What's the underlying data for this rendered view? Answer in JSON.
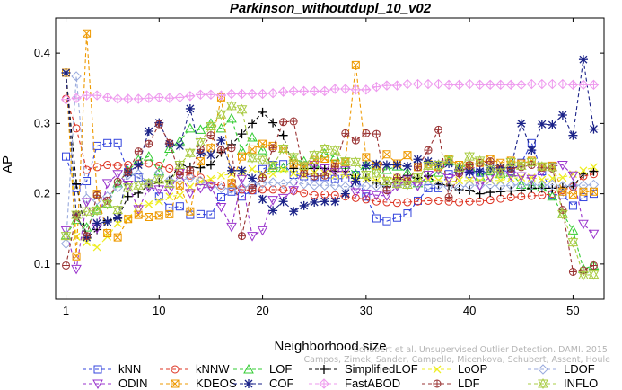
{
  "chart_data": {
    "type": "line",
    "title": "Parkinson_withoutdupl_10_v02",
    "xlabel": "Neighborhood size",
    "ylabel": "AP",
    "xlim": [
      0,
      53
    ],
    "ylim": [
      0.05,
      0.45
    ],
    "x_ticks": [
      1,
      10,
      20,
      30,
      40,
      50
    ],
    "y_ticks": [
      0.1,
      0.2,
      0.3,
      0.4
    ],
    "grid": false,
    "legend_position": "bottom",
    "x": [
      1,
      2,
      3,
      4,
      5,
      6,
      7,
      8,
      9,
      10,
      11,
      12,
      13,
      14,
      15,
      16,
      17,
      18,
      19,
      20,
      21,
      22,
      23,
      24,
      25,
      26,
      27,
      28,
      29,
      30,
      31,
      32,
      33,
      34,
      35,
      36,
      37,
      38,
      39,
      40,
      41,
      42,
      43,
      44,
      45,
      46,
      47,
      48,
      49,
      50,
      51,
      52
    ],
    "series": [
      {
        "name": "kNN",
        "color": "#3344dd",
        "marker": "square",
        "values": [
          0.253,
          0.208,
          0.218,
          0.268,
          0.272,
          0.272,
          0.231,
          0.223,
          0.214,
          0.196,
          0.18,
          0.182,
          0.17,
          0.171,
          0.17,
          0.195,
          0.203,
          0.196,
          0.205,
          0.235,
          0.241,
          0.242,
          0.227,
          0.225,
          0.224,
          0.224,
          0.221,
          0.222,
          0.227,
          0.196,
          0.165,
          0.161,
          0.166,
          0.172,
          0.19,
          0.208,
          0.208,
          0.228,
          0.233,
          0.228,
          0.23,
          0.232,
          0.233,
          0.232,
          0.244,
          0.272,
          0.232,
          0.199,
          0.198,
          0.183,
          0.195,
          0.2
        ]
      },
      {
        "name": "kNNW",
        "color": "#dd3322",
        "marker": "circle",
        "values": [
          0.335,
          0.293,
          0.234,
          0.238,
          0.241,
          0.24,
          0.241,
          0.243,
          0.243,
          0.24,
          0.236,
          0.231,
          0.226,
          0.223,
          0.214,
          0.212,
          0.21,
          0.206,
          0.205,
          0.206,
          0.206,
          0.206,
          0.204,
          0.201,
          0.198,
          0.199,
          0.198,
          0.196,
          0.194,
          0.192,
          0.189,
          0.188,
          0.187,
          0.188,
          0.189,
          0.19,
          0.19,
          0.189,
          0.188,
          0.189,
          0.189,
          0.191,
          0.193,
          0.195,
          0.196,
          0.197,
          0.198,
          0.2,
          0.205,
          0.21,
          0.225,
          0.228
        ]
      },
      {
        "name": "LOF",
        "color": "#33cc33",
        "marker": "triangle",
        "values": [
          0.141,
          0.163,
          0.152,
          0.178,
          0.186,
          0.215,
          0.232,
          0.248,
          0.253,
          0.232,
          0.264,
          0.275,
          0.293,
          0.291,
          0.3,
          0.293,
          0.307,
          0.261,
          0.28,
          0.262,
          0.237,
          0.237,
          0.248,
          0.246,
          0.243,
          0.257,
          0.252,
          0.241,
          0.228,
          0.241,
          0.235,
          0.234,
          0.239,
          0.23,
          0.215,
          0.223,
          0.23,
          0.246,
          0.238,
          0.24,
          0.225,
          0.232,
          0.228,
          0.23,
          0.213,
          0.212,
          0.209,
          0.196,
          0.172,
          0.148,
          0.093,
          0.098
        ]
      },
      {
        "name": "SimplifiedLOF",
        "color": "#000000",
        "marker": "plus",
        "values": [
          0.372,
          0.214,
          0.137,
          0.149,
          0.162,
          0.165,
          0.196,
          0.201,
          0.212,
          0.216,
          0.219,
          0.242,
          0.238,
          0.237,
          0.241,
          0.259,
          0.27,
          0.285,
          0.3,
          0.316,
          0.301,
          0.283,
          0.236,
          0.236,
          0.236,
          0.236,
          0.232,
          0.232,
          0.222,
          0.222,
          0.215,
          0.21,
          0.221,
          0.226,
          0.222,
          0.225,
          0.214,
          0.212,
          0.206,
          0.205,
          0.2,
          0.202,
          0.203,
          0.204,
          0.205,
          0.208,
          0.208,
          0.208,
          0.209,
          0.211,
          0.228,
          0.232
        ]
      },
      {
        "name": "LoOP",
        "color": "#eeee22",
        "marker": "x",
        "values": [
          0.372,
          0.139,
          0.131,
          0.124,
          0.139,
          0.158,
          0.165,
          0.182,
          0.185,
          0.189,
          0.196,
          0.198,
          0.21,
          0.217,
          0.221,
          0.226,
          0.228,
          0.23,
          0.235,
          0.228,
          0.228,
          0.234,
          0.229,
          0.227,
          0.23,
          0.229,
          0.226,
          0.227,
          0.223,
          0.222,
          0.218,
          0.22,
          0.223,
          0.22,
          0.217,
          0.219,
          0.219,
          0.217,
          0.219,
          0.219,
          0.218,
          0.219,
          0.219,
          0.222,
          0.223,
          0.223,
          0.22,
          0.222,
          0.223,
          0.228,
          0.233,
          0.238
        ]
      },
      {
        "name": "LDOF",
        "color": "#99aadd",
        "marker": "diamond",
        "values": [
          0.129,
          0.367,
          0.193,
          0.191,
          0.196,
          0.209,
          0.227,
          0.228,
          0.215,
          0.23,
          0.219,
          0.218,
          0.223,
          0.218,
          0.211,
          0.208,
          0.207,
          0.209,
          0.212,
          0.215,
          0.216,
          0.214,
          0.217,
          0.214,
          0.212,
          0.212,
          0.212,
          0.21,
          0.211,
          0.211,
          0.211,
          0.213,
          0.212,
          0.213,
          0.213,
          0.212,
          0.212,
          0.21,
          0.209,
          0.212,
          0.212,
          0.213,
          0.211,
          0.212,
          0.213,
          0.213,
          0.212,
          0.213,
          0.211,
          0.212,
          0.212,
          0.213
        ]
      },
      {
        "name": "ODIN",
        "color": "#9933cc",
        "marker": "triangle-down",
        "values": [
          0.148,
          0.093,
          0.188,
          0.151,
          0.215,
          0.228,
          0.213,
          0.178,
          0.209,
          0.206,
          0.205,
          0.23,
          0.201,
          0.208,
          0.21,
          0.181,
          0.153,
          0.221,
          0.14,
          0.148,
          0.191,
          0.194,
          0.205,
          0.24,
          0.241,
          0.236,
          0.231,
          0.233,
          0.202,
          0.2,
          0.198,
          0.197,
          0.211,
          0.22,
          0.211,
          0.227,
          0.234,
          0.222,
          0.229,
          0.232,
          0.212,
          0.224,
          0.232,
          0.226,
          0.225,
          0.221,
          0.232,
          0.239,
          0.241,
          0.226,
          0.157,
          0.143
        ]
      },
      {
        "name": "KDEOS",
        "color": "#ee9900",
        "marker": "square-x",
        "values": [
          0.372,
          0.111,
          0.428,
          0.2,
          0.144,
          0.138,
          0.164,
          0.17,
          0.167,
          0.169,
          0.171,
          0.212,
          0.175,
          0.246,
          0.265,
          0.337,
          0.215,
          0.253,
          0.263,
          0.271,
          0.268,
          0.264,
          0.243,
          0.238,
          0.248,
          0.25,
          0.243,
          0.245,
          0.383,
          0.252,
          0.24,
          0.256,
          0.243,
          0.255,
          0.238,
          0.242,
          0.238,
          0.249,
          0.241,
          0.24,
          0.244,
          0.249,
          0.244,
          0.247,
          0.243,
          0.247,
          0.238,
          0.24,
          0.203,
          0.199,
          0.203,
          0.203
        ]
      },
      {
        "name": "COF",
        "color": "#1a2288",
        "marker": "star",
        "values": [
          0.372,
          0.17,
          0.138,
          0.158,
          0.16,
          0.166,
          0.23,
          0.241,
          0.289,
          0.301,
          0.271,
          0.268,
          0.321,
          0.258,
          0.255,
          0.276,
          0.233,
          0.233,
          0.222,
          0.192,
          0.176,
          0.189,
          0.175,
          0.183,
          0.188,
          0.189,
          0.189,
          0.2,
          0.218,
          0.24,
          0.242,
          0.241,
          0.241,
          0.239,
          0.249,
          0.246,
          0.242,
          0.243,
          0.235,
          0.231,
          0.232,
          0.236,
          0.237,
          0.237,
          0.3,
          0.262,
          0.299,
          0.298,
          0.312,
          0.283,
          0.391,
          0.292
        ]
      },
      {
        "name": "FastABOD",
        "color": "#ee99ee",
        "marker": "diamond-plus",
        "values": [
          0.334,
          0.336,
          0.34,
          0.34,
          0.337,
          0.335,
          0.335,
          0.335,
          0.336,
          0.337,
          0.336,
          0.337,
          0.339,
          0.341,
          0.341,
          0.34,
          0.342,
          0.342,
          0.342,
          0.342,
          0.343,
          0.345,
          0.346,
          0.346,
          0.346,
          0.346,
          0.349,
          0.349,
          0.348,
          0.348,
          0.352,
          0.354,
          0.354,
          0.356,
          0.356,
          0.356,
          0.356,
          0.355,
          0.355,
          0.356,
          0.355,
          0.355,
          0.355,
          0.355,
          0.355,
          0.356,
          0.356,
          0.356,
          0.356,
          0.355,
          0.355,
          0.355
        ]
      },
      {
        "name": "LDF",
        "color": "#993333",
        "marker": "circle-plus",
        "values": [
          0.098,
          0.17,
          0.14,
          0.198,
          0.19,
          0.217,
          0.231,
          0.26,
          0.271,
          0.299,
          0.272,
          0.227,
          0.233,
          0.263,
          0.283,
          0.262,
          0.265,
          0.14,
          0.208,
          0.223,
          0.265,
          0.302,
          0.303,
          0.229,
          0.225,
          0.226,
          0.239,
          0.286,
          0.276,
          0.286,
          0.285,
          0.205,
          0.223,
          0.218,
          0.238,
          0.262,
          0.291,
          0.195,
          0.229,
          0.241,
          0.244,
          0.246,
          0.235,
          0.236,
          0.238,
          0.241,
          0.237,
          0.236,
          0.177,
          0.089,
          0.091,
          0.098
        ]
      },
      {
        "name": "INFLO",
        "color": "#aacc44",
        "marker": "hourglass",
        "values": [
          0.14,
          0.17,
          0.175,
          0.176,
          0.185,
          0.177,
          0.209,
          0.212,
          0.215,
          0.22,
          0.214,
          0.241,
          0.258,
          0.273,
          0.296,
          0.313,
          0.325,
          0.32,
          0.251,
          0.248,
          0.24,
          0.264,
          0.252,
          0.24,
          0.255,
          0.264,
          0.262,
          0.246,
          0.245,
          0.227,
          0.229,
          0.218,
          0.214,
          0.213,
          0.223,
          0.24,
          0.241,
          0.248,
          0.237,
          0.253,
          0.247,
          0.234,
          0.23,
          0.245,
          0.24,
          0.245,
          0.239,
          0.238,
          0.171,
          0.131,
          0.084,
          0.085
        ]
      }
    ],
    "watermark": [
      "Schubert et al. Unsupervised Outlier Detection. DAMI. 2015.",
      "Campos, Zimek, Sander, Campello, Micenkova, Schubert, Assent, Houle"
    ]
  }
}
